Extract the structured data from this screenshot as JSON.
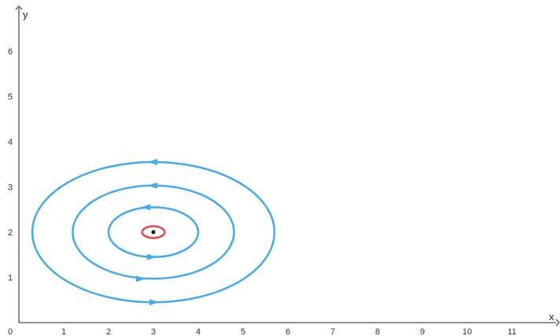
{
  "chart_data": {
    "type": "phase-portrait",
    "xlabel": "x",
    "ylabel": "y",
    "xlim": [
      0,
      12
    ],
    "ylim": [
      0,
      7
    ],
    "x_ticks": [
      "0",
      "1",
      "2",
      "3",
      "4",
      "5",
      "6",
      "7",
      "8",
      "9",
      "10",
      "11"
    ],
    "y_ticks": [
      "1",
      "2",
      "3",
      "4",
      "5",
      "6"
    ],
    "equilibrium": {
      "x": 3,
      "y": 2
    },
    "orbits": [
      {
        "cx": 3,
        "cy": 2,
        "rx": 0.25,
        "ry": 0.13,
        "color": "#e84545",
        "arrows": []
      },
      {
        "cx": 3,
        "cy": 2,
        "rx": 1.0,
        "ry": 0.55,
        "color": "#42aaee",
        "arrows": [
          {
            "x": 2.85,
            "y": 2.55,
            "dir": "left"
          },
          {
            "x": 2.95,
            "y": 1.45,
            "dir": "right"
          }
        ]
      },
      {
        "cx": 3,
        "cy": 2,
        "rx": 1.8,
        "ry": 1.03,
        "color": "#42aaee",
        "arrows": [
          {
            "x": 3.0,
            "y": 3.03,
            "dir": "left"
          },
          {
            "x": 2.7,
            "y": 0.97,
            "dir": "right"
          }
        ]
      },
      {
        "cx": 3,
        "cy": 2,
        "rx": 2.7,
        "ry": 1.55,
        "color": "#42aaee",
        "arrows": [
          {
            "x": 3.0,
            "y": 3.55,
            "dir": "left"
          },
          {
            "x": 3.0,
            "y": 0.45,
            "dir": "right"
          }
        ]
      }
    ],
    "colors": {
      "axis": "#222222",
      "equilibrium_point": "#000000"
    }
  }
}
